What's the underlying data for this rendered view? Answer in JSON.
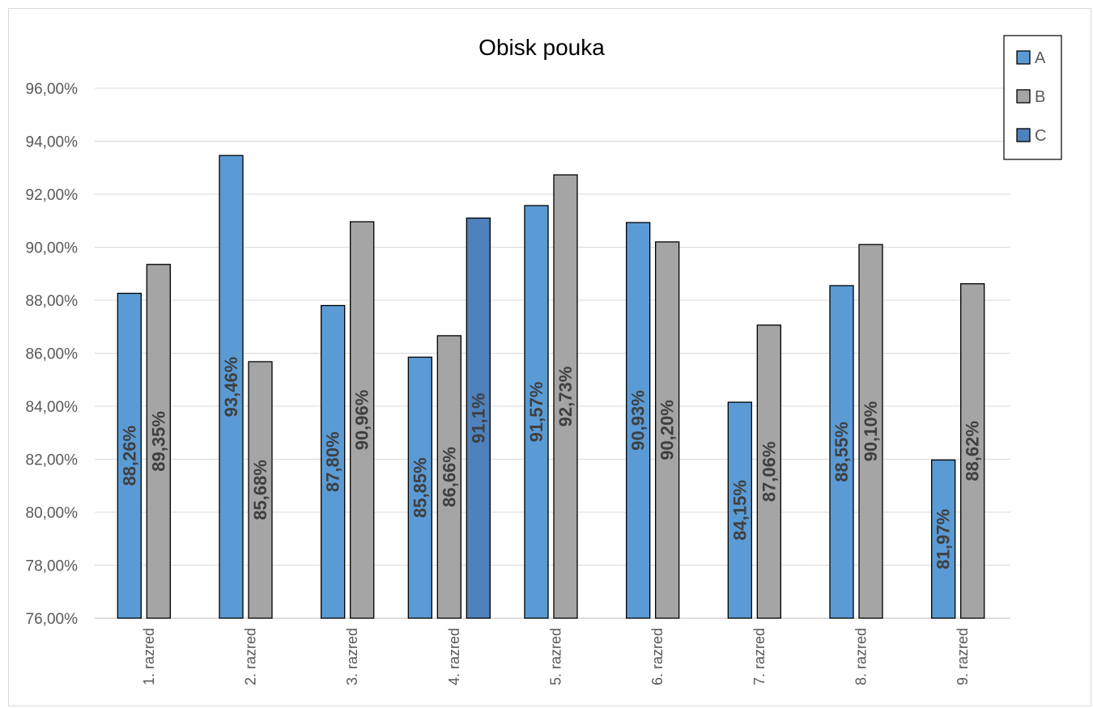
{
  "chart_data": {
    "type": "bar",
    "title": "Obisk pouka",
    "xlabel": "",
    "ylabel": "",
    "ylim": [
      0.76,
      0.96
    ],
    "y_ticks": [
      "76,00%",
      "78,00%",
      "80,00%",
      "82,00%",
      "84,00%",
      "86,00%",
      "88,00%",
      "90,00%",
      "92,00%",
      "94,00%",
      "96,00%"
    ],
    "grid": true,
    "legend_position": "top-right",
    "categories": [
      "1. razred",
      "2. razred",
      "3. razred",
      "4. razred",
      "5. razred",
      "6. razred",
      "7. razred",
      "8. razred",
      "9. razred"
    ],
    "series": [
      {
        "name": "A",
        "color": "#5b9bd5",
        "values": [
          0.8826,
          0.9346,
          0.878,
          0.8585,
          0.9157,
          0.9093,
          0.8415,
          0.8855,
          0.8197
        ],
        "labels": [
          "88,26%",
          "93,46%",
          "87,80%",
          "85,85%",
          "91,57%",
          "90,93%",
          "84,15%",
          "88,55%",
          "81,97%"
        ]
      },
      {
        "name": "B",
        "color": "#a5a5a5",
        "values": [
          0.8935,
          0.8568,
          0.9096,
          0.8666,
          0.9273,
          0.902,
          0.8706,
          0.901,
          0.8862
        ],
        "labels": [
          "89,35%",
          "85,68%",
          "90,96%",
          "86,66%",
          "92,73%",
          "90,20%",
          "87,06%",
          "90,10%",
          "88,62%"
        ]
      },
      {
        "name": "C",
        "color": "#4f81bd",
        "values": [
          null,
          null,
          null,
          0.911,
          null,
          null,
          null,
          null,
          null
        ],
        "labels": [
          null,
          null,
          null,
          "91,1%",
          null,
          null,
          null,
          null,
          null
        ]
      }
    ]
  }
}
